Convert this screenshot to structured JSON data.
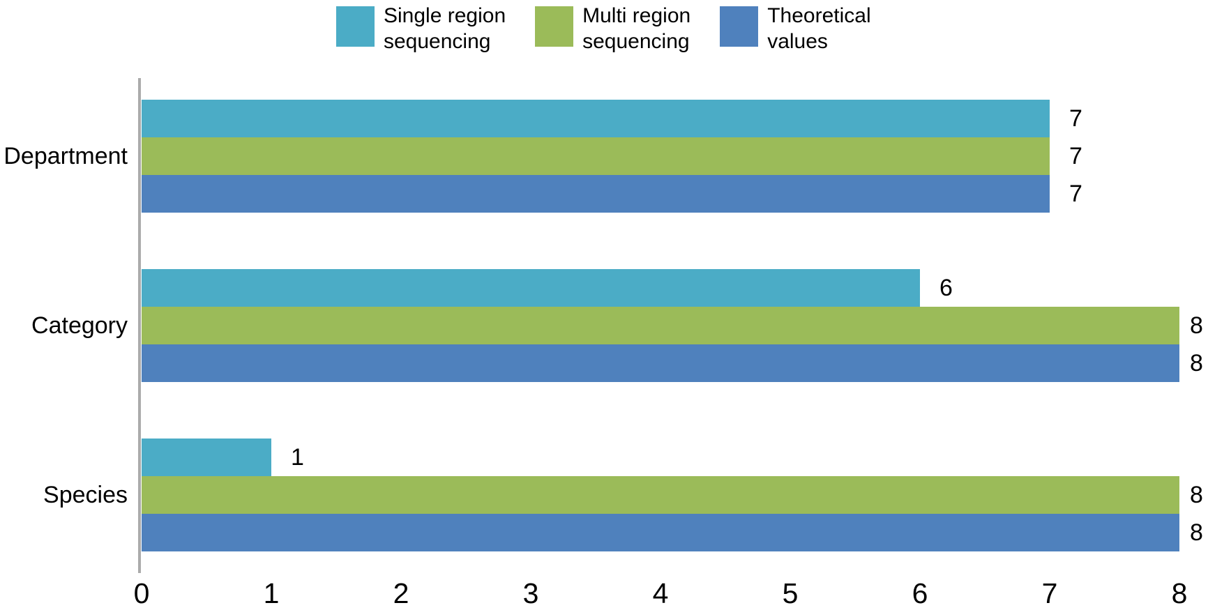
{
  "legend": {
    "items": [
      {
        "label_lines": [
          "Single region",
          "sequencing"
        ],
        "series": "Single region sequencing",
        "color": "#4BACC6"
      },
      {
        "label_lines": [
          "Multi region",
          "sequencing"
        ],
        "series": "Multi region sequencing",
        "color": "#9BBB59"
      },
      {
        "label_lines": [
          "Theoretical",
          "values"
        ],
        "series": "Theoretical values",
        "color": "#4F81BD"
      }
    ]
  },
  "chart_data": {
    "type": "bar",
    "orientation": "horizontal",
    "title": "",
    "xlabel": "",
    "ylabel": "",
    "categories": [
      "Department",
      "Category",
      "Species"
    ],
    "series": [
      {
        "name": "Single region sequencing",
        "color": "#4BACC6",
        "values": [
          7,
          6,
          1
        ]
      },
      {
        "name": "Multi region sequencing",
        "color": "#9BBB59",
        "values": [
          7,
          8,
          8
        ]
      },
      {
        "name": "Theoretical values",
        "color": "#4F81BD",
        "values": [
          7,
          8,
          8
        ]
      }
    ],
    "data_labels_shown": true,
    "data_labels": {
      "Department": [
        7,
        7,
        7
      ],
      "Category": [
        6,
        8,
        8
      ],
      "Species": [
        1,
        8,
        8
      ]
    },
    "xlim": [
      0,
      8
    ],
    "x_ticks": [
      0,
      1,
      2,
      3,
      4,
      5,
      6,
      7,
      8
    ],
    "grid": false,
    "legend_position": "top",
    "axis_color": "#ABABAB",
    "text_color": "#000000",
    "background_color": "#FFFFFF"
  }
}
